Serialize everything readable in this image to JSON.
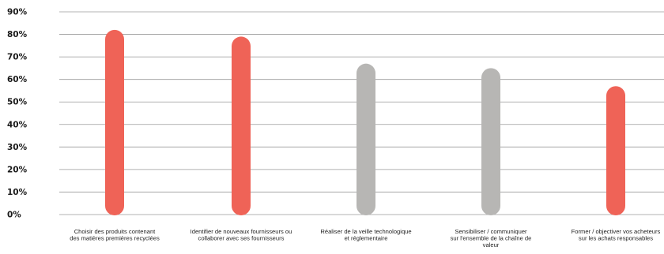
{
  "chart_data": {
    "type": "bar",
    "title": "",
    "xlabel": "",
    "ylabel": "",
    "ylim": [
      0,
      90
    ],
    "yticks": [
      0,
      10,
      20,
      30,
      40,
      50,
      60,
      70,
      80,
      90
    ],
    "ytick_labels": [
      "0%",
      "10%",
      "20%",
      "30%",
      "40%",
      "50%",
      "60%",
      "70%",
      "80%",
      "90%"
    ],
    "grid": true,
    "legend": "none",
    "categories": [
      [
        "Choisir des produits contenant",
        "des matières premières recyclées"
      ],
      [
        "Identifier de nouveaux fournisseurs ou",
        "collaborer avec ses fournisseurs"
      ],
      [
        "Réaliser de la veille technologique",
        "et réglementaire"
      ],
      [
        "Sensibiliser / communiquer",
        "sur l'ensemble de la chaîne de",
        "valeur"
      ],
      [
        "Former / objectiver vos acheteurs",
        "sur les achats responsables"
      ]
    ],
    "values": [
      82,
      79,
      67,
      65,
      57
    ],
    "colors": [
      "#ef6357",
      "#ef6357",
      "#b7b6b4",
      "#b7b6b4",
      "#ef6357"
    ]
  }
}
